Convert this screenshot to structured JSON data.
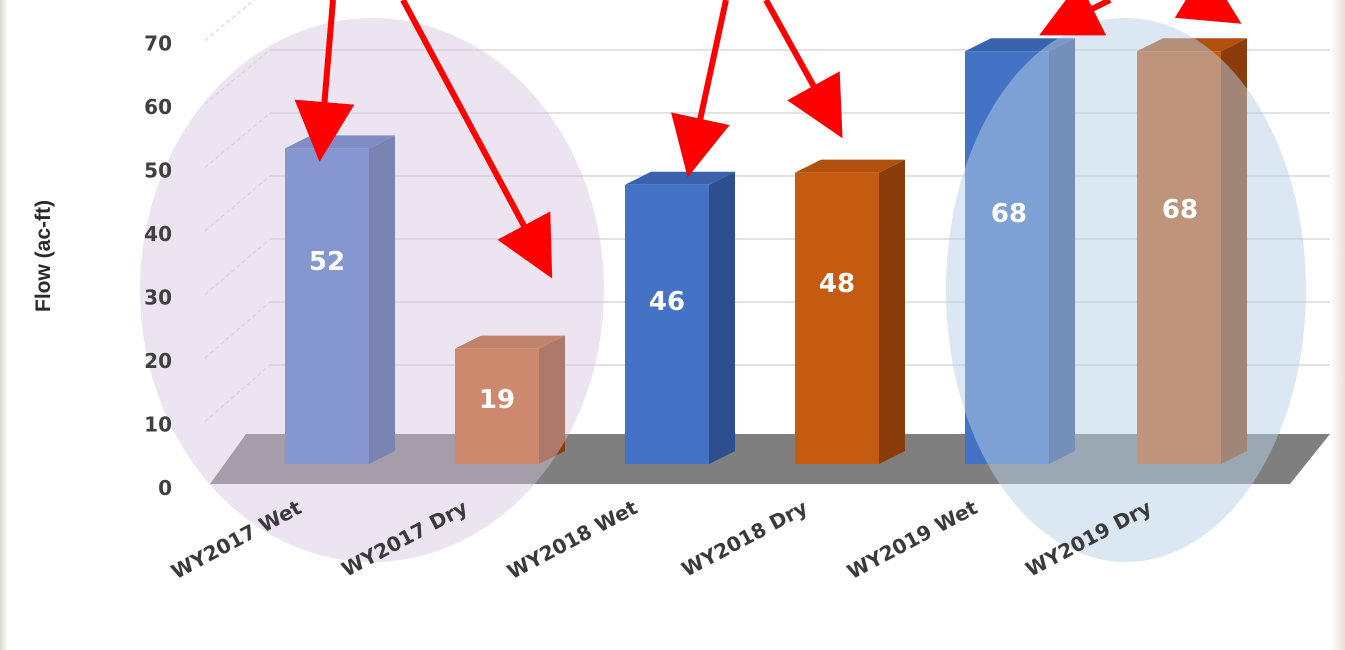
{
  "chart_data": {
    "type": "bar",
    "categories": [
      "WY2017 Wet",
      "WY2017 Dry",
      "WY2018 Wet",
      "WY2018 Dry",
      "WY2019 Wet",
      "WY2019 Dry"
    ],
    "values": [
      52,
      19,
      46,
      48,
      68,
      68
    ],
    "ylabel": "Flow (ac-ft)",
    "ylim": [
      0,
      70
    ],
    "yticks": [
      0,
      10,
      20,
      30,
      40,
      50,
      60,
      70
    ],
    "grid": true,
    "style": "3d",
    "colors": {
      "wet": "#4472c4",
      "dry": "#c55a11",
      "arrow": "#ff0000",
      "highlight_2017": "#d6c4e0",
      "highlight_2019": "#b8cfe6"
    }
  }
}
